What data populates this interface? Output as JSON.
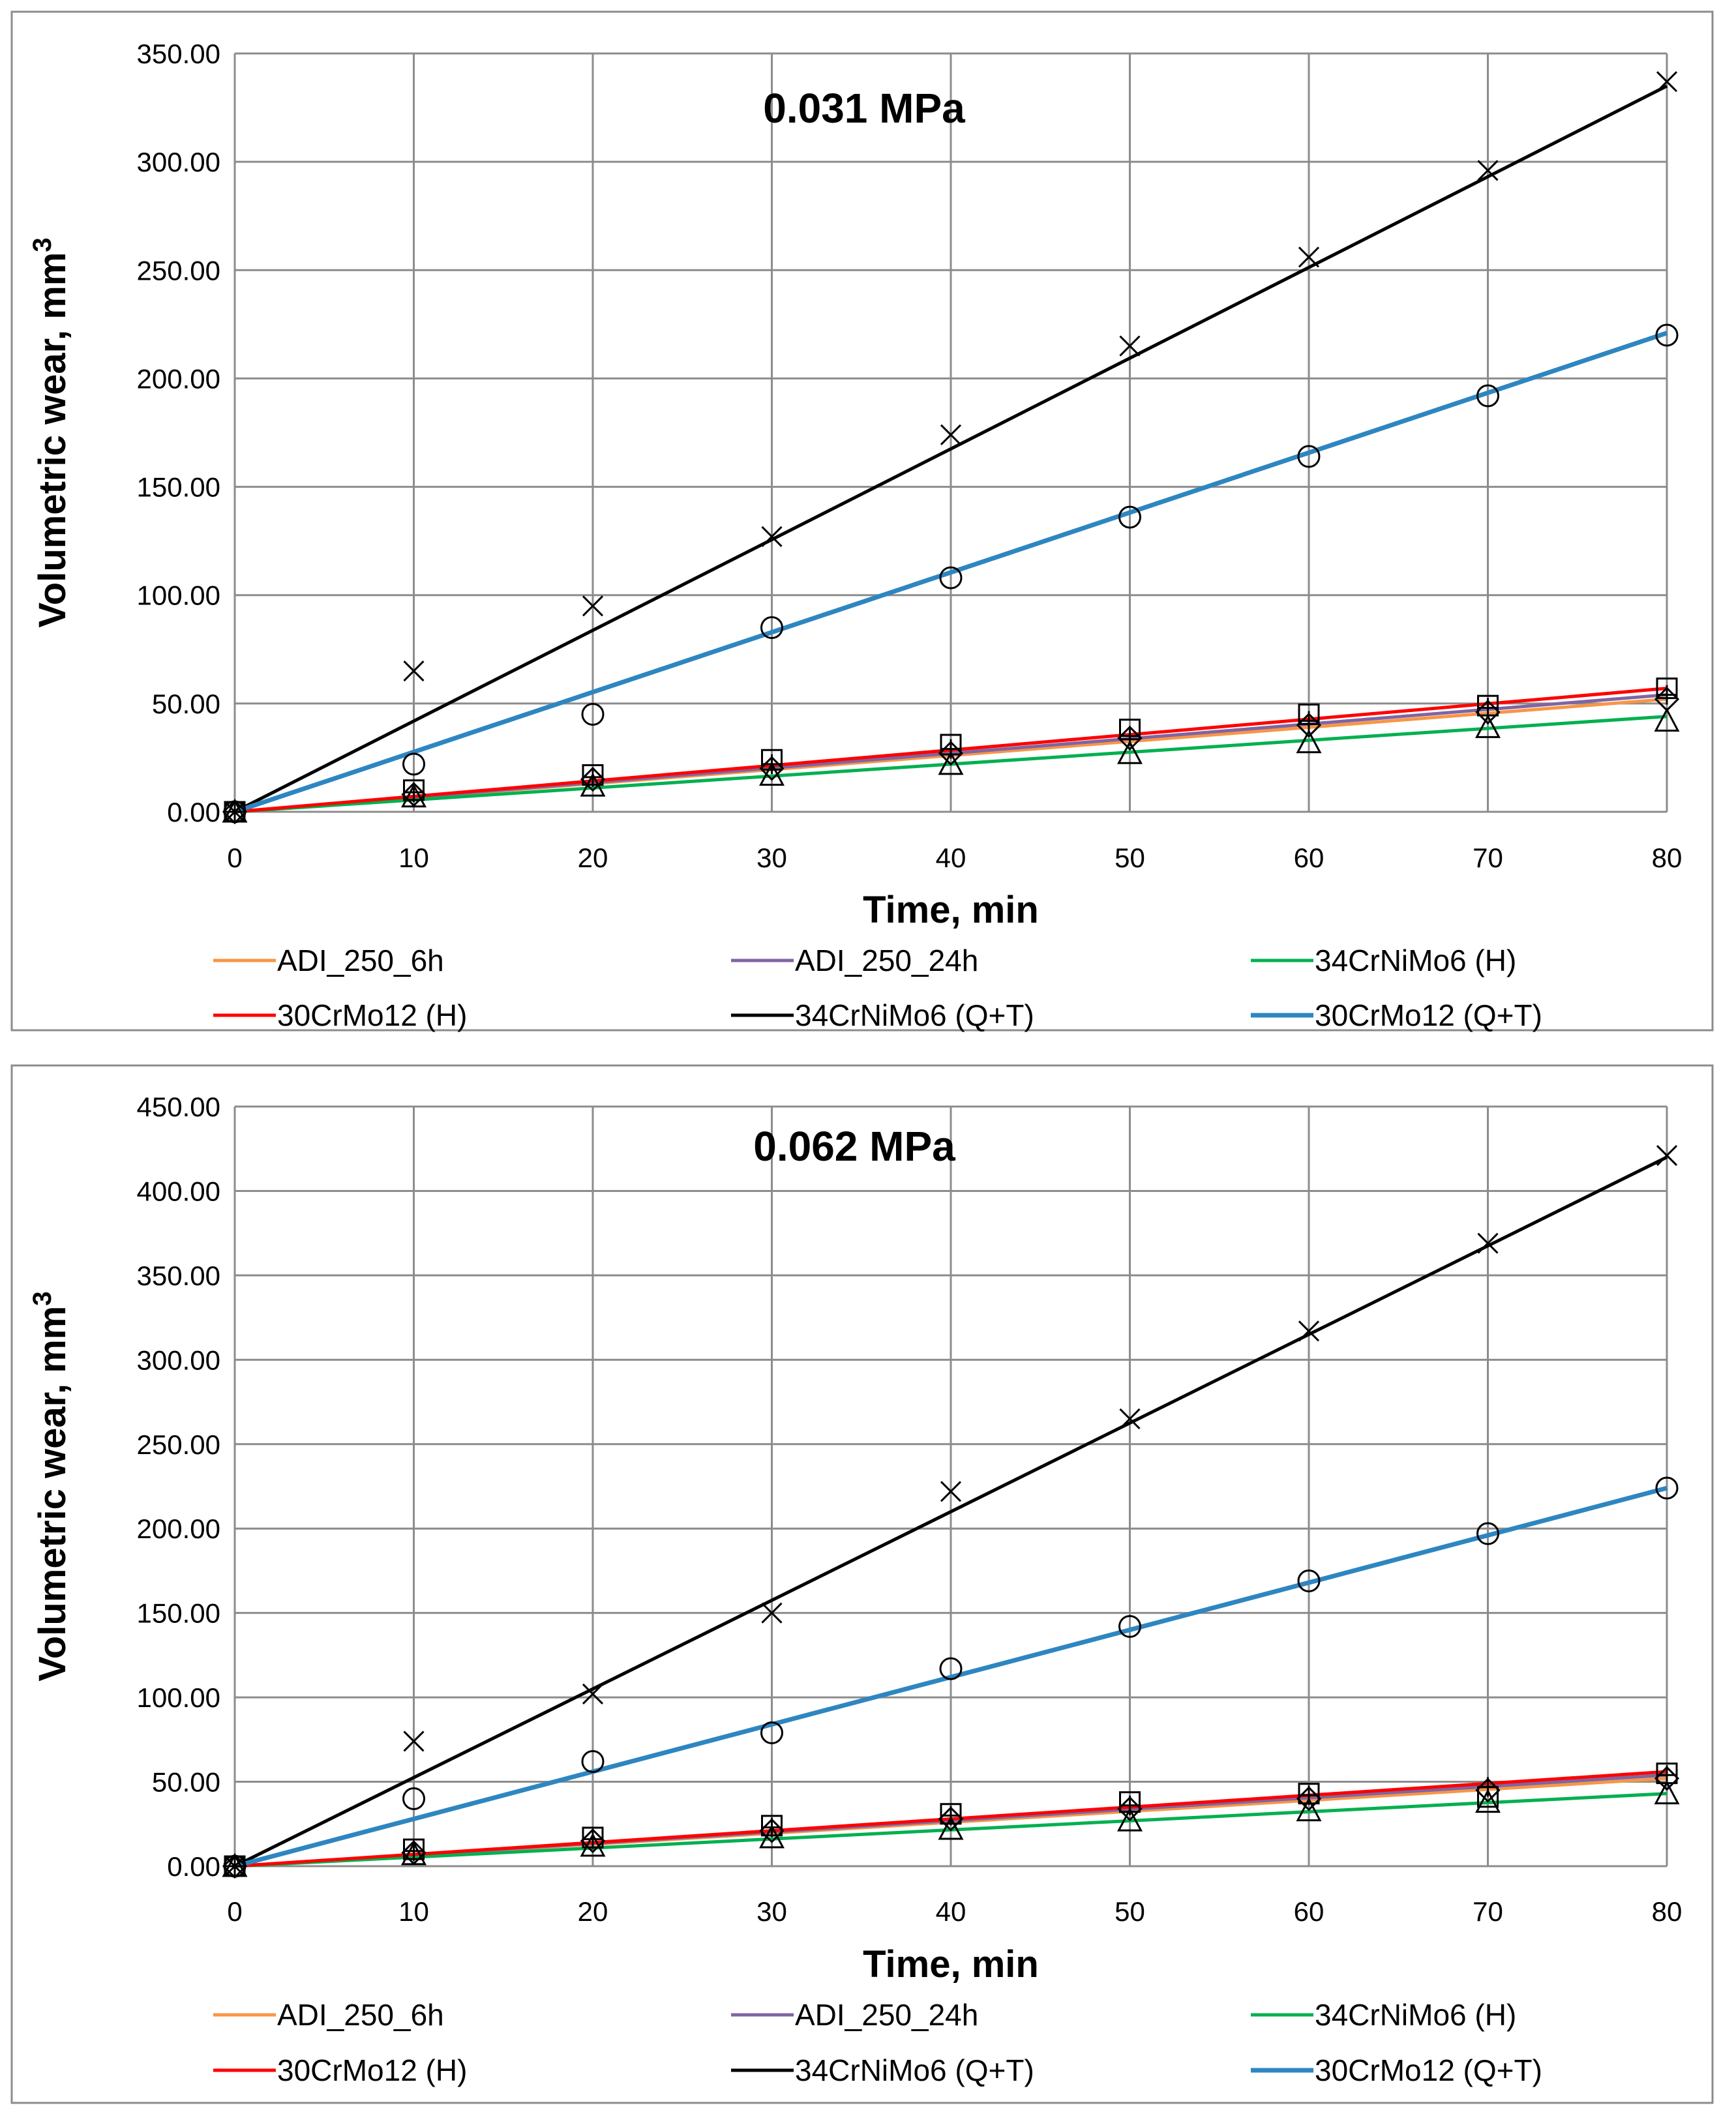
{
  "chart_data": [
    {
      "type": "scatter",
      "title": "0.031 MPa",
      "xlabel": "Time, min",
      "ylabel": "Volumetric  wear, mm",
      "ylabel_sup": "3",
      "xlim": [
        0,
        80
      ],
      "ylim": [
        0,
        350
      ],
      "xticks": [
        "0",
        "10",
        "20",
        "30",
        "40",
        "50",
        "60",
        "70",
        "80"
      ],
      "yticks": [
        "0.00",
        "50.00",
        "100.00",
        "150.00",
        "200.00",
        "250.00",
        "300.00",
        "350.00"
      ],
      "x": [
        0,
        10,
        20,
        30,
        40,
        50,
        60,
        70,
        80
      ],
      "grid": true,
      "legend_position": "bottom",
      "series": [
        {
          "name": "ADI_250_6h",
          "color": "#F79646",
          "marker": "diamond",
          "points": [
            0,
            8,
            15,
            20,
            27,
            34,
            40,
            46,
            52
          ],
          "fit": [
            0,
            52
          ]
        },
        {
          "name": "ADI_250_24h",
          "color": "#8064A2",
          "marker": "plus",
          "points": [
            0,
            9,
            16,
            22,
            29,
            35,
            42,
            48,
            54
          ],
          "fit": [
            0,
            54
          ]
        },
        {
          "name": "34CrNiMo6 (H)",
          "color": "#00B050",
          "marker": "triangle",
          "points": [
            0,
            7,
            12,
            17,
            22,
            27,
            32,
            39,
            42
          ],
          "fit": [
            0,
            44
          ]
        },
        {
          "name": "30CrMo12 (H)",
          "color": "#FF0000",
          "marker": "square",
          "points": [
            0,
            10,
            17,
            24,
            31,
            38,
            45,
            49,
            57
          ],
          "fit": [
            0,
            57
          ]
        },
        {
          "name": "34CrNiMo6 (Q+T)",
          "color": "#000000",
          "marker": "x",
          "points": [
            0,
            65,
            95,
            127,
            174,
            215,
            256,
            296,
            337
          ],
          "fit": [
            0,
            335
          ]
        },
        {
          "name": "30CrMo12 (Q+T)",
          "color": "#2E86C1",
          "marker": "circle",
          "points": [
            0,
            22,
            45,
            85,
            108,
            136,
            164,
            192,
            220
          ],
          "fit": [
            0,
            221
          ]
        }
      ]
    },
    {
      "type": "scatter",
      "title": "0.062 MPa",
      "xlabel": "Time, min",
      "ylabel": "Volumetric  wear, mm",
      "ylabel_sup": "3",
      "xlim": [
        0,
        80
      ],
      "ylim": [
        0,
        450
      ],
      "xticks": [
        "0",
        "10",
        "20",
        "30",
        "40",
        "50",
        "60",
        "70",
        "80"
      ],
      "yticks": [
        "0.00",
        "50.00",
        "100.00",
        "150.00",
        "200.00",
        "250.00",
        "300.00",
        "350.00",
        "400.00",
        "450.00"
      ],
      "x": [
        0,
        10,
        20,
        30,
        40,
        50,
        60,
        70,
        80
      ],
      "grid": true,
      "legend_position": "bottom",
      "series": [
        {
          "name": "ADI_250_6h",
          "color": "#F79646",
          "marker": "diamond",
          "points": [
            0,
            8,
            15,
            21,
            28,
            34,
            40,
            45,
            52
          ],
          "fit": [
            0,
            52
          ]
        },
        {
          "name": "ADI_250_24h",
          "color": "#8064A2",
          "marker": "plus",
          "points": [
            0,
            9,
            16,
            23,
            30,
            36,
            42,
            47,
            54
          ],
          "fit": [
            0,
            54
          ]
        },
        {
          "name": "34CrNiMo6 (H)",
          "color": "#00B050",
          "marker": "triangle",
          "points": [
            0,
            7,
            12,
            17,
            22,
            27,
            33,
            38,
            43
          ],
          "fit": [
            0,
            43
          ]
        },
        {
          "name": "30CrMo12 (H)",
          "color": "#FF0000",
          "marker": "square",
          "points": [
            0,
            10,
            17,
            24,
            31,
            38,
            43,
            41,
            55
          ],
          "fit": [
            0,
            56
          ]
        },
        {
          "name": "34CrNiMo6 (Q+T)",
          "color": "#000000",
          "marker": "x",
          "points": [
            0,
            74,
            102,
            150,
            222,
            265,
            317,
            369,
            421
          ],
          "fit": [
            0,
            420
          ]
        },
        {
          "name": "30CrMo12 (Q+T)",
          "color": "#2E86C1",
          "marker": "circle",
          "points": [
            0,
            40,
            62,
            79,
            117,
            142,
            169,
            197,
            224
          ],
          "fit": [
            0,
            224
          ]
        }
      ]
    }
  ]
}
